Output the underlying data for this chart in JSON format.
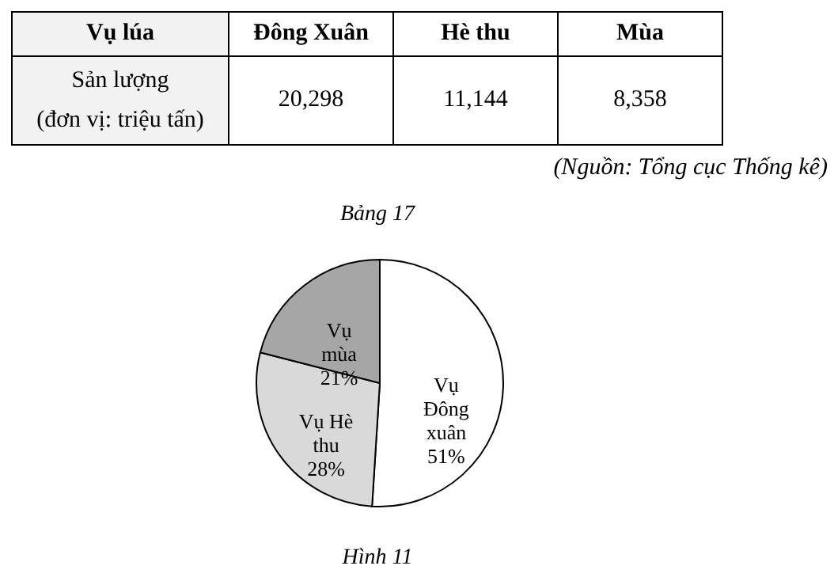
{
  "chart_data": {
    "type": "pie",
    "categories": [
      "Vụ Đông xuân",
      "Vụ Hè thu",
      "Vụ mùa"
    ],
    "values": [
      51,
      28,
      21
    ],
    "colors": [
      "#ffffff",
      "#d9d9d9",
      "#a6a6a6"
    ],
    "value_labels": [
      "51%",
      "28%",
      "21%"
    ],
    "legend": false,
    "annotations": [
      "Vụ lúa",
      "Đông Xuân",
      "Hè thu",
      "Mùa",
      "Sản lượng",
      "(đơn vị: triệu tấn)",
      "20,298",
      "11,144",
      "8,358",
      "(Nguồn: Tổng cục Thống kê)",
      "Bảng 17",
      "Hình 11"
    ]
  }
}
